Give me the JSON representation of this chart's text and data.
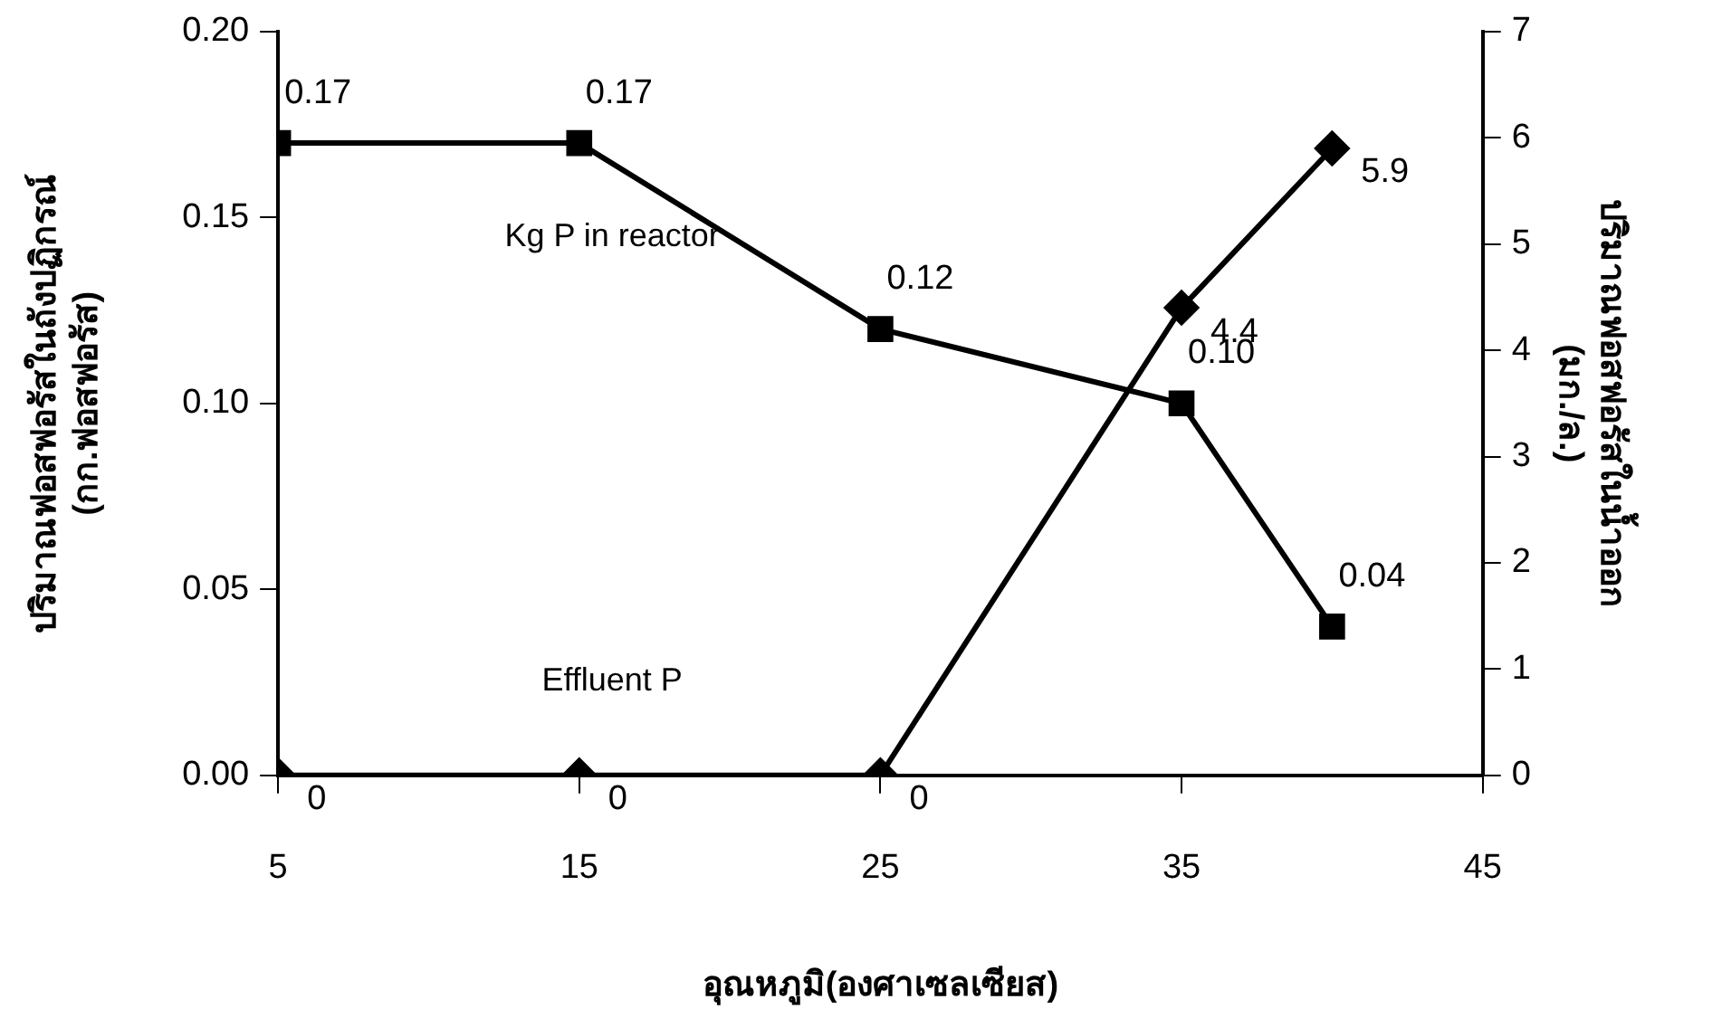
{
  "chart_data": {
    "type": "line",
    "xlabel": "อุณหภูมิ(องศาเซลเซียส)",
    "ylabel": "ปริมาณฟอสฟอรัสในถังปฏิกรณ์\n(กก.ฟอสฟอรัส)",
    "y2label": "ปริมาณฟอสฟอรัสในน้ำออก\n(มก./ล.)",
    "x": [
      5,
      15,
      25,
      35,
      40
    ],
    "xlim": [
      5,
      45
    ],
    "xticks": [
      5,
      15,
      25,
      35,
      45
    ],
    "ylim": [
      0,
      0.2
    ],
    "yticks": [
      {
        "value": 0,
        "label": "0.00"
      },
      {
        "value": 0.05,
        "label": "0.05"
      },
      {
        "value": 0.1,
        "label": "0.10"
      },
      {
        "value": 0.15,
        "label": "0.15"
      },
      {
        "value": 0.2,
        "label": "0.20"
      }
    ],
    "y2lim": [
      0,
      7
    ],
    "y2ticks": [
      0,
      1,
      2,
      3,
      4,
      5,
      6,
      7
    ],
    "series": [
      {
        "name": "Kg P in reactor",
        "color": "#000000",
        "marker": "square",
        "values": [
          0.17,
          0.17,
          0.12,
          0.1,
          0.04
        ],
        "value_labels": [
          "0.17",
          "0.17",
          "0.12",
          "0.10",
          "0.04"
        ]
      },
      {
        "name": "Effluent P",
        "color": "#000000",
        "marker": "diamond",
        "axis": "y2",
        "values": [
          0,
          0,
          0,
          4.4,
          5.9
        ],
        "value_labels": [
          "0",
          "0",
          "0",
          "4.4",
          "5.9"
        ]
      }
    ],
    "grid": false,
    "legend": false,
    "line_style": "solid"
  }
}
